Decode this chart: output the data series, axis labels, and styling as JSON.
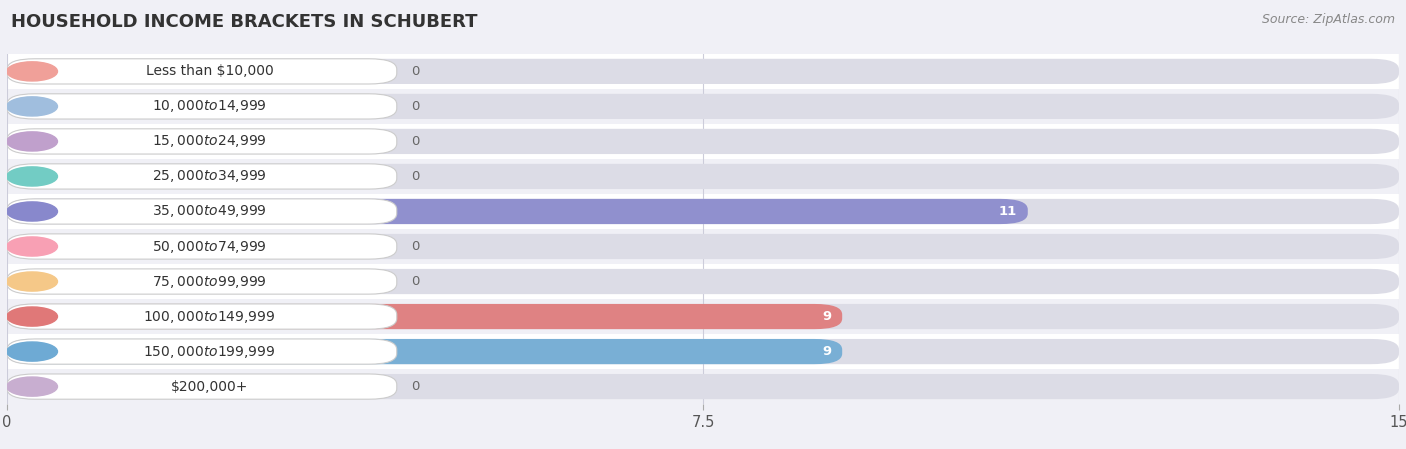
{
  "title": "HOUSEHOLD INCOME BRACKETS IN SCHUBERT",
  "source": "Source: ZipAtlas.com",
  "categories": [
    "Less than $10,000",
    "$10,000 to $14,999",
    "$15,000 to $24,999",
    "$25,000 to $34,999",
    "$35,000 to $49,999",
    "$50,000 to $74,999",
    "$75,000 to $99,999",
    "$100,000 to $149,999",
    "$150,000 to $199,999",
    "$200,000+"
  ],
  "values": [
    0,
    0,
    0,
    0,
    11,
    0,
    0,
    9,
    9,
    0
  ],
  "bar_colors": [
    "#f0a099",
    "#a0bede",
    "#c0a0cc",
    "#72ccc4",
    "#8888cc",
    "#f8a0b4",
    "#f5c888",
    "#e07878",
    "#6eaad4",
    "#c8aed0"
  ],
  "row_colors": [
    "#ffffff",
    "#f0f0f6"
  ],
  "xlim": [
    0,
    15
  ],
  "xticks": [
    0,
    7.5,
    15
  ],
  "bg_color": "#f0f0f6",
  "bar_bg_color": "#dcdce6",
  "grid_color": "#ccccda",
  "title_fontsize": 13,
  "label_fontsize": 10,
  "value_fontsize": 9.5
}
